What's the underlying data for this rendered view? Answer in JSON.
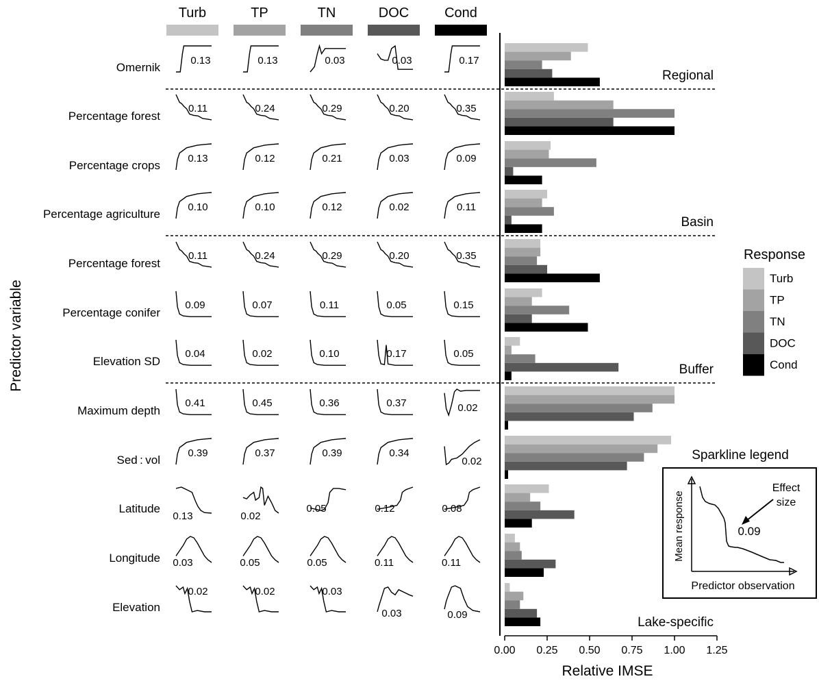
{
  "chart_data": {
    "type": "bar",
    "orientation": "horizontal",
    "y_axis_label": "Predictor variable",
    "x_axis_label": "Relative IMSE",
    "x_ticks": [
      "0.00",
      "0.25",
      "0.50",
      "0.75",
      "1.00",
      "1.25"
    ],
    "xlim": [
      0,
      1.25
    ],
    "responses": [
      "Turb",
      "TP",
      "TN",
      "DOC",
      "Cond"
    ],
    "colors": [
      "#c4c4c4",
      "#a3a3a3",
      "#808080",
      "#585858",
      "#000000"
    ],
    "groups": [
      "Regional",
      "Basin",
      "Buffer",
      "Lake-specific"
    ],
    "predictors": [
      {
        "name": "Omernik",
        "group": "Regional",
        "imse": [
          0.49,
          0.39,
          0.22,
          0.28,
          0.56
        ],
        "effect": [
          "0.13",
          "0.13",
          "0.03",
          "0.03",
          "0.17"
        ],
        "shapes": [
          "step",
          "step",
          "spikestep",
          "spike",
          "step"
        ]
      },
      {
        "name": "Percentage forest",
        "group": "Basin",
        "imse": [
          0.29,
          0.64,
          1.0,
          0.64,
          1.0
        ],
        "effect": [
          "0.11",
          "0.24",
          "0.29",
          "0.20",
          "0.35"
        ],
        "shapes": [
          "decay",
          "decay",
          "decay",
          "decay",
          "decay"
        ]
      },
      {
        "name": "Percentage crops",
        "group": "Basin",
        "imse": [
          0.27,
          0.26,
          0.54,
          0.05,
          0.22
        ],
        "effect": [
          "0.13",
          "0.12",
          "0.21",
          "0.03",
          "0.09"
        ],
        "shapes": [
          "rise",
          "rise",
          "rise",
          "rise",
          "rise"
        ]
      },
      {
        "name": "Percentage agriculture",
        "group": "Basin",
        "imse": [
          0.25,
          0.22,
          0.29,
          0.04,
          0.22
        ],
        "effect": [
          "0.10",
          "0.10",
          "0.12",
          "0.02",
          "0.11"
        ],
        "shapes": [
          "rise",
          "rise",
          "rise",
          "rise",
          "rise"
        ]
      },
      {
        "name": "Percentage forest",
        "group": "Buffer",
        "imse": [
          0.21,
          0.21,
          0.19,
          0.25,
          0.56
        ],
        "effect": [
          "0.11",
          "0.24",
          "0.29",
          "0.20",
          "0.35"
        ],
        "shapes": [
          "decay",
          "decay",
          "decay",
          "decay",
          "decay"
        ]
      },
      {
        "name": "Percentage conifer",
        "group": "Buffer",
        "imse": [
          0.22,
          0.16,
          0.38,
          0.16,
          0.49
        ],
        "effect": [
          "0.09",
          "0.07",
          "0.11",
          "0.05",
          "0.15"
        ],
        "shapes": [
          "sharpdecay",
          "sharpdecay",
          "sharpdecay",
          "sharpdecay",
          "sharpdecay"
        ]
      },
      {
        "name": "Elevation SD",
        "group": "Buffer",
        "imse": [
          0.09,
          0.04,
          0.18,
          0.67,
          0.04
        ],
        "effect": [
          "0.04",
          "0.02",
          "0.10",
          "0.17",
          "0.05"
        ],
        "shapes": [
          "sharpdecay",
          "sharpdecay",
          "sharpdecay",
          "spikedecay",
          "sharpdecay"
        ]
      },
      {
        "name": "Maximum depth",
        "group": "Lake-specific",
        "imse": [
          1.0,
          1.0,
          0.87,
          0.76,
          0.02
        ],
        "effect": [
          "0.41",
          "0.45",
          "0.36",
          "0.37",
          "0.02"
        ],
        "shapes": [
          "sharpdecay",
          "sharpdecay",
          "sharpdecay",
          "sharpdecay",
          "vshape"
        ]
      },
      {
        "name": "Sed : vol",
        "group": "Lake-specific",
        "imse": [
          0.98,
          0.9,
          0.82,
          0.72,
          0.02
        ],
        "effect": [
          "0.39",
          "0.37",
          "0.39",
          "0.34",
          "0.02"
        ],
        "shapes": [
          "rise",
          "rise",
          "rise",
          "rise",
          "lowrise"
        ]
      },
      {
        "name": "Latitude",
        "group": "Lake-specific",
        "imse": [
          0.26,
          0.15,
          0.21,
          0.41,
          0.16
        ],
        "effect": [
          "0.13",
          "0.02",
          "0.05",
          "0.12",
          "0.08"
        ],
        "shapes": [
          "humpdown",
          "wiggle",
          "sigmoid",
          "upjump",
          "upjump"
        ]
      },
      {
        "name": "Longitude",
        "group": "Lake-specific",
        "imse": [
          0.06,
          0.09,
          0.1,
          0.3,
          0.23
        ],
        "effect": [
          "0.03",
          "0.05",
          "0.05",
          "0.11",
          "0.11"
        ],
        "shapes": [
          "hump",
          "hump",
          "hump",
          "hump",
          "hump"
        ]
      },
      {
        "name": "Elevation",
        "group": "Lake-specific",
        "imse": [
          0.03,
          0.11,
          0.09,
          0.19,
          0.21
        ],
        "effect": [
          "0.02",
          "0.02",
          "0.03",
          "0.03",
          "0.09"
        ],
        "shapes": [
          "dropwiggle",
          "dropwiggle",
          "dropwiggle",
          "lowhump",
          "spikedrop"
        ]
      }
    ]
  },
  "legend": {
    "title": "Response",
    "items": [
      "Turb",
      "TP",
      "TN",
      "DOC",
      "Cond"
    ]
  },
  "sparkline_legend": {
    "title": "Sparkline legend",
    "y_label": "Mean response",
    "x_label": "Predictor observation",
    "annotation_line1": "Effect",
    "annotation_line2": "size",
    "example_value": "0.09"
  }
}
